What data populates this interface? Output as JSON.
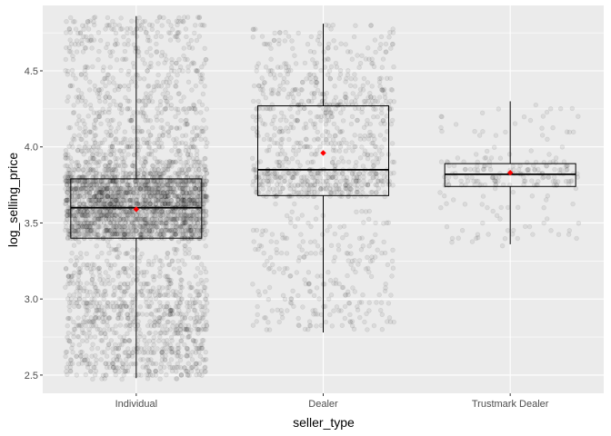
{
  "chart_data": {
    "type": "boxplot",
    "xlabel": "seller_type",
    "ylabel": "log_selling_price",
    "categories": [
      "Individual",
      "Dealer",
      "Trustmark Dealer"
    ],
    "ylim": [
      2.38,
      4.93
    ],
    "yticks": [
      2.5,
      3.0,
      3.5,
      4.0,
      4.5
    ],
    "ytick_labels": [
      "2.5",
      "3.0",
      "3.5",
      "4.0",
      "4.5"
    ],
    "grid": true,
    "boxes": [
      {
        "category": "Individual",
        "whisker_low": 2.48,
        "q1": 3.4,
        "median": 3.6,
        "q3": 3.79,
        "whisker_high": 4.86,
        "mean": 3.59,
        "n_points": 3800
      },
      {
        "category": "Dealer",
        "whisker_low": 2.78,
        "q1": 3.68,
        "median": 3.85,
        "q3": 4.27,
        "whisker_high": 4.81,
        "mean": 3.96,
        "n_points": 1100
      },
      {
        "category": "Trustmark Dealer",
        "whisker_low": 3.36,
        "q1": 3.74,
        "median": 3.82,
        "q3": 3.89,
        "whisker_high": 4.3,
        "mean": 3.83,
        "n_points": 220
      }
    ],
    "colors": {
      "panel": "#ebebeb",
      "grid_major": "#ffffff",
      "points": "#000000",
      "mean_marker": "#ff0000",
      "box_fill": "#ffffff",
      "box_line": "#000000"
    }
  }
}
